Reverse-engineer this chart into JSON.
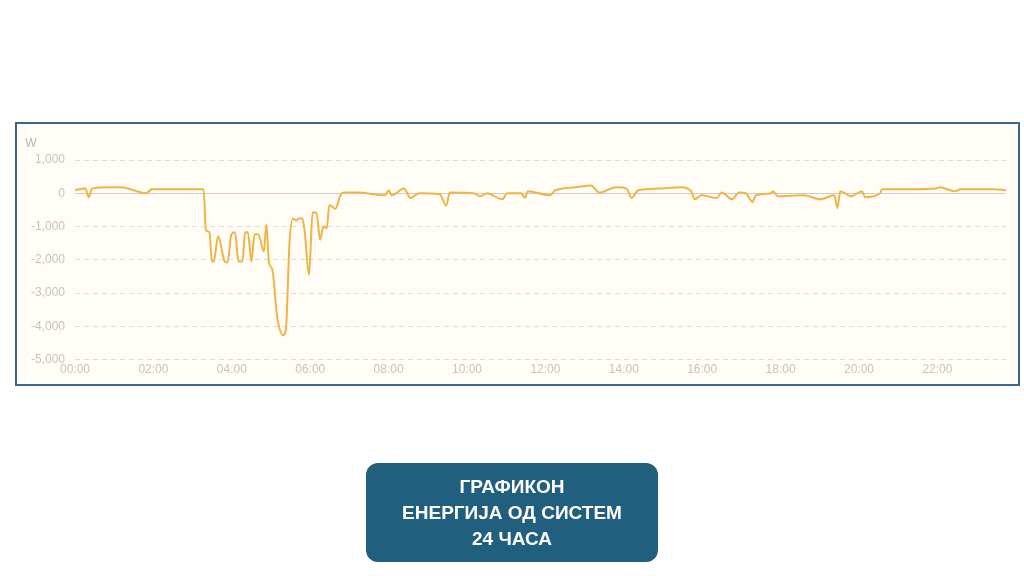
{
  "chart_data": {
    "type": "line",
    "title": "ГРАФИКОН\nЕНЕРГИЈА ОД СИСТЕМ\n24 ЧАСА",
    "ylabel": "W",
    "x": [
      0,
      0.26,
      0.35,
      0.43,
      0.87,
      1.17,
      1.82,
      1.95,
      3.21,
      3.28,
      3.34,
      3.43,
      3.49,
      3.54,
      3.65,
      3.82,
      3.89,
      3.99,
      4.08,
      4.17,
      4.27,
      4.34,
      4.41,
      4.5,
      4.58,
      4.67,
      4.82,
      4.88,
      4.95,
      5.03,
      5.16,
      5.31,
      5.38,
      5.47,
      5.56,
      5.64,
      5.71,
      5.8,
      5.86,
      5.97,
      6.06,
      6.16,
      6.25,
      6.34,
      6.42,
      6.49,
      6.64,
      6.77,
      6.86,
      7.21,
      7.91,
      8.0,
      8.08,
      8.39,
      8.56,
      8.78,
      9.3,
      9.47,
      9.56,
      10.16,
      10.34,
      10.51,
      10.9,
      11.03,
      11.38,
      11.48,
      11.55,
      12.12,
      12.25,
      12.77,
      13.16,
      13.38,
      13.81,
      14.07,
      14.2,
      14.37,
      14.85,
      15.46,
      15.72,
      15.81,
      15.98,
      16.37,
      16.5,
      16.76,
      16.94,
      17.11,
      17.28,
      17.37,
      17.76,
      17.8,
      17.93,
      18.58,
      19.02,
      19.37,
      19.45,
      19.52,
      19.8,
      20.08,
      20.15,
      20.54,
      20.58,
      21.36,
      21.97,
      22.06,
      22.45,
      22.58,
      23.44,
      23.75
    ],
    "series": [
      {
        "color": "#f0b445",
        "values": [
          100,
          140,
          -120,
          140,
          180,
          180,
          0,
          120,
          120,
          120,
          -1110,
          -1170,
          -2050,
          -2050,
          -1290,
          -2050,
          -2080,
          -1230,
          -1170,
          -2050,
          -2050,
          -1170,
          -1170,
          -2050,
          -1230,
          -1230,
          -1750,
          -940,
          -2100,
          -2280,
          -3740,
          -4270,
          -4090,
          -1520,
          -760,
          -820,
          -760,
          -760,
          -1170,
          -2460,
          -580,
          -580,
          -1400,
          -990,
          -1050,
          -350,
          -470,
          -60,
          20,
          20,
          -60,
          90,
          -60,
          140,
          -140,
          0,
          -20,
          -370,
          20,
          0,
          -90,
          0,
          -180,
          0,
          0,
          -140,
          60,
          -60,
          90,
          180,
          230,
          20,
          180,
          140,
          -140,
          90,
          140,
          180,
          60,
          -180,
          -60,
          -140,
          20,
          -180,
          20,
          0,
          -260,
          -60,
          0,
          60,
          -90,
          -60,
          -180,
          -60,
          -440,
          60,
          -90,
          60,
          -120,
          0,
          120,
          120,
          140,
          180,
          60,
          120,
          120,
          90
        ]
      }
    ],
    "xlim": [
      0,
      23.75
    ],
    "xticks": [
      {
        "value": 0,
        "label": "00:00"
      },
      {
        "value": 2,
        "label": "02:00"
      },
      {
        "value": 4,
        "label": "04:00"
      },
      {
        "value": 6,
        "label": "06:00"
      },
      {
        "value": 8,
        "label": "08:00"
      },
      {
        "value": 10,
        "label": "10:00"
      },
      {
        "value": 12,
        "label": "12:00"
      },
      {
        "value": 14,
        "label": "14:00"
      },
      {
        "value": 16,
        "label": "16:00"
      },
      {
        "value": 18,
        "label": "18:00"
      },
      {
        "value": 20,
        "label": "20:00"
      },
      {
        "value": 22,
        "label": "22:00"
      }
    ],
    "ylim": [
      -5000,
      1000
    ],
    "yticks": [
      {
        "value": -5000,
        "label": "-5,000"
      },
      {
        "value": -4000,
        "label": "-4,000"
      },
      {
        "value": -3000,
        "label": "-3,000"
      },
      {
        "value": -2000,
        "label": "-2,000"
      },
      {
        "value": -1000,
        "label": "-1,000"
      },
      0,
      {
        "value": 1000,
        "label": "1,000"
      }
    ],
    "grid": "y",
    "legend": false,
    "marker": "none",
    "line_style": "solid"
  }
}
